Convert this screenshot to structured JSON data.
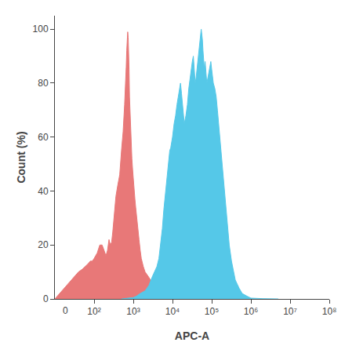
{
  "chart_data": {
    "type": "area",
    "xlabel": "APC-A",
    "ylabel": "Count (%)",
    "log": "x",
    "grid": false,
    "background": "#FFFFFF",
    "xlim": [
      10,
      100000000
    ],
    "xticks": [
      {
        "value": 100,
        "label": "10²"
      },
      {
        "value": 1000,
        "label": "10³"
      },
      {
        "value": 10000,
        "label": "10⁴"
      },
      {
        "value": 100000,
        "label": "10⁵"
      },
      {
        "value": 1000000,
        "label": "10⁶"
      },
      {
        "value": 10000000,
        "label": "10⁷"
      },
      {
        "value": 100000000,
        "label": "10⁸"
      }
    ],
    "ylim": [
      0,
      105
    ],
    "yticks": [
      0,
      20,
      40,
      60,
      80,
      100
    ],
    "annotations": [
      {
        "text": "0"
      }
    ],
    "series": [
      {
        "color": "#E87878",
        "x": [
          10,
          20,
          30,
          40,
          50,
          60,
          70,
          80,
          90,
          100,
          120,
          140,
          160,
          180,
          200,
          220,
          240,
          260,
          280,
          300,
          320,
          360,
          400,
          450,
          500,
          550,
          600,
          640,
          660,
          680,
          700,
          720,
          740,
          760,
          780,
          800,
          840,
          880,
          920,
          960,
          1000,
          1050,
          1100,
          1150,
          1200,
          1300,
          1400,
          1500,
          1600,
          1800,
          2000,
          2500,
          3000,
          4000,
          5000,
          7000,
          10000,
          20000,
          50000,
          100000,
          1000000
        ],
        "values": [
          0,
          5,
          8,
          10,
          11,
          12,
          13,
          14,
          14,
          15,
          17,
          20,
          20,
          18,
          16,
          18,
          22,
          20,
          21,
          25,
          30,
          38,
          42,
          46,
          55,
          62,
          72,
          80,
          86,
          92,
          97,
          99,
          97,
          93,
          85,
          75,
          65,
          58,
          52,
          48,
          44,
          40,
          37,
          34,
          31,
          27,
          22,
          18,
          15,
          12,
          10,
          8,
          6,
          4,
          3,
          2,
          1,
          0.5,
          0.2,
          0.1,
          0
        ]
      },
      {
        "color": "#55C8E8",
        "x": [
          500,
          800,
          1000,
          1200,
          1500,
          2000,
          2500,
          3000,
          3500,
          4000,
          4500,
          5000,
          5500,
          6000,
          6500,
          7000,
          7500,
          8000,
          8500,
          9000,
          9500,
          10000,
          11000,
          12000,
          13000,
          14000,
          15000,
          16000,
          17000,
          18000,
          19000,
          20000,
          22000,
          24000,
          26000,
          28000,
          30000,
          32000,
          34000,
          36000,
          38000,
          40000,
          42000,
          44000,
          46000,
          48000,
          50000,
          52000,
          54000,
          56000,
          58000,
          60000,
          62000,
          65000,
          68000,
          72000,
          75000,
          80000,
          85000,
          90000,
          95000,
          100000,
          110000,
          120000,
          130000,
          140000,
          150000,
          160000,
          180000,
          200000,
          220000,
          250000,
          280000,
          320000,
          360000,
          400000,
          500000,
          600000,
          800000,
          1000000,
          2000000,
          5000000
        ],
        "values": [
          0,
          0.2,
          0.5,
          1,
          2,
          3,
          5,
          8,
          10,
          12,
          15,
          20,
          26,
          33,
          38,
          43,
          47,
          52,
          55,
          56,
          58,
          60,
          65,
          68,
          72,
          75,
          78,
          80,
          76,
          72,
          68,
          65,
          68,
          72,
          78,
          82,
          85,
          88,
          90,
          85,
          80,
          82,
          85,
          88,
          90,
          92,
          96,
          98,
          100,
          98,
          96,
          92,
          88,
          85,
          88,
          84,
          80,
          82,
          84,
          86,
          88,
          85,
          80,
          78,
          75,
          70,
          65,
          60,
          52,
          44,
          36,
          28,
          20,
          14,
          10,
          7,
          4,
          2,
          1,
          0.3,
          0.1,
          0
        ]
      }
    ]
  }
}
